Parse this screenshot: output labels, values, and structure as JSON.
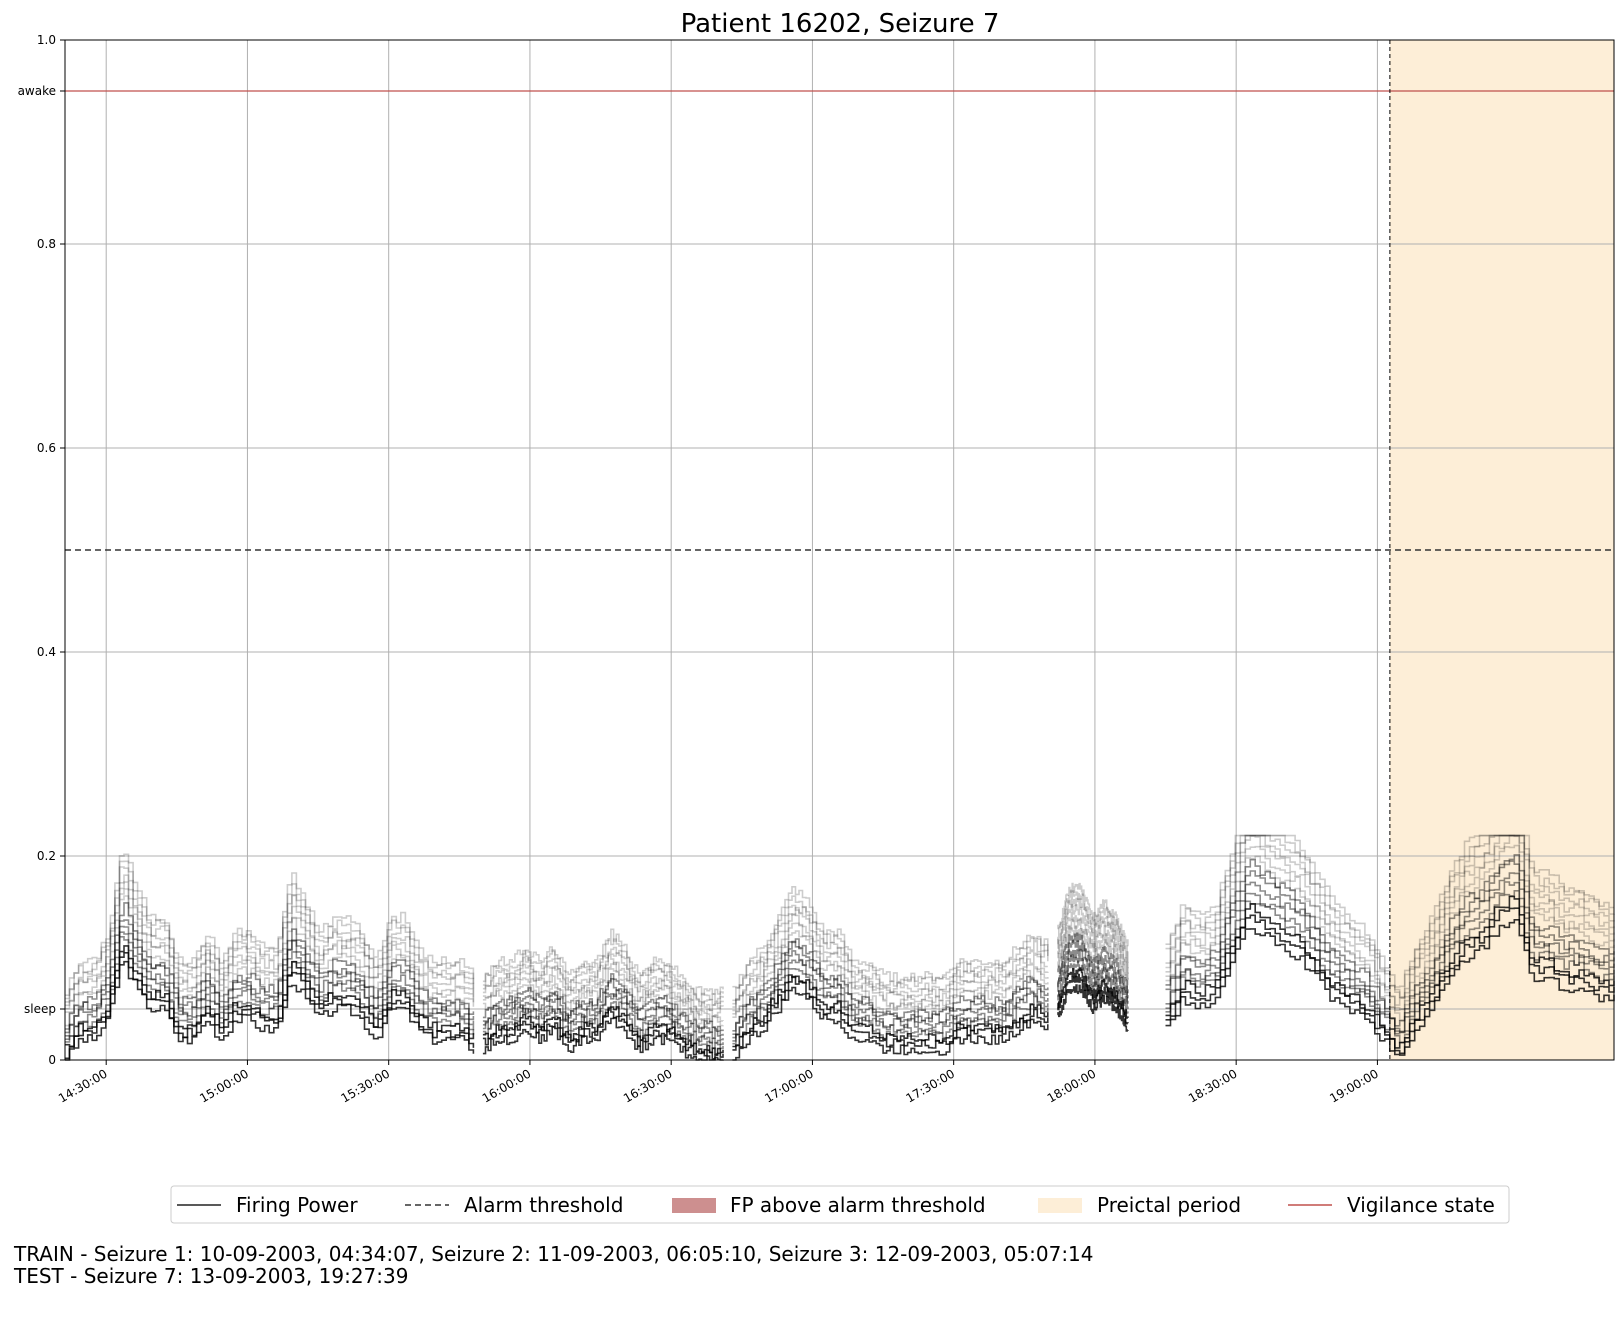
{
  "chart_data": {
    "type": "line",
    "title": "Patient 16202, Seizure 7",
    "xlabel": "",
    "ylabel": "",
    "x_range": [
      "14:21:15",
      "19:50:15"
    ],
    "ylim": [
      0,
      1.0
    ],
    "y_ticks": [
      {
        "value": 0,
        "label": "0"
      },
      {
        "value": 0.05,
        "label": "sleep"
      },
      {
        "value": 0.2,
        "label": "0.2"
      },
      {
        "value": 0.4,
        "label": "0.4"
      },
      {
        "value": 0.6,
        "label": "0.6"
      },
      {
        "value": 0.8,
        "label": "0.8"
      },
      {
        "value": 0.95,
        "label": "awake"
      },
      {
        "value": 1.0,
        "label": "1.0"
      }
    ],
    "x_ticks": [
      "14:30:00",
      "15:00:00",
      "15:30:00",
      "16:00:00",
      "16:30:00",
      "17:00:00",
      "17:30:00",
      "18:00:00",
      "18:30:00",
      "19:00:00"
    ],
    "grid": true,
    "alarm_threshold": 0.5,
    "vigilance_state": 0.95,
    "vigilance_color": "#c0504d",
    "preictal_start": "19:02:39",
    "preictal_color": "#fdeed7",
    "fp_above_color": "#cd8f8f",
    "firing_power_segments": [
      {
        "start": "14:21:15",
        "end": "15:48:00",
        "base": [
          0.0,
          0.02,
          0.02,
          0.04,
          0.1,
          0.07,
          0.05,
          0.05,
          0.02,
          0.02,
          0.04,
          0.02,
          0.04,
          0.04,
          0.03,
          0.03,
          0.08,
          0.06,
          0.04,
          0.05,
          0.05,
          0.04,
          0.02,
          0.05,
          0.05,
          0.03,
          0.02,
          0.02,
          0.02,
          0.01
        ]
      },
      {
        "start": "15:50:00",
        "end": "16:41:00",
        "base": [
          0.01,
          0.02,
          0.02,
          0.03,
          0.02,
          0.03,
          0.01,
          0.02,
          0.02,
          0.04,
          0.03,
          0.01,
          0.02,
          0.02,
          0.01,
          0.0,
          0.0,
          0.0
        ]
      },
      {
        "start": "16:43:00",
        "end": "17:50:00",
        "base": [
          0.0,
          0.02,
          0.03,
          0.05,
          0.07,
          0.06,
          0.04,
          0.04,
          0.02,
          0.02,
          0.01,
          0.01,
          0.01,
          0.01,
          0.01,
          0.02,
          0.02,
          0.02,
          0.02,
          0.03,
          0.04,
          0.03
        ]
      },
      {
        "start": "17:52:00",
        "end": "18:07:00",
        "base": [
          0.04,
          0.07,
          0.07,
          0.05,
          0.06,
          0.05,
          0.03
        ]
      },
      {
        "start": "18:15:00",
        "end": "19:50:15",
        "base": [
          0.03,
          0.06,
          0.05,
          0.06,
          0.1,
          0.13,
          0.12,
          0.11,
          0.1,
          0.08,
          0.06,
          0.05,
          0.04,
          0.02,
          0.0,
          0.03,
          0.05,
          0.08,
          0.1,
          0.11,
          0.13,
          0.14,
          0.08,
          0.08,
          0.07,
          0.07,
          0.06,
          0.06
        ]
      }
    ],
    "series_offsets": [
      0.0,
      0.01,
      0.018,
      0.025,
      0.032,
      0.04,
      0.048,
      0.056,
      0.064,
      0.072,
      0.08,
      0.088,
      0.096,
      0.104,
      0.112
    ]
  },
  "legend": {
    "items": [
      {
        "label": "Firing Power",
        "kind": "line"
      },
      {
        "label": "Alarm threshold",
        "kind": "dash"
      },
      {
        "label": "FP above alarm threshold",
        "kind": "patch-red"
      },
      {
        "label": "Preictal period",
        "kind": "patch-orange"
      },
      {
        "label": "Vigilance state",
        "kind": "vigilance"
      }
    ]
  },
  "footer": {
    "line1": "TRAIN - Seizure 1: 10-09-2003, 04:34:07, Seizure 2: 11-09-2003, 06:05:10, Seizure 3: 12-09-2003, 05:07:14",
    "line2": "TEST - Seizure 7: 13-09-2003, 19:27:39"
  }
}
